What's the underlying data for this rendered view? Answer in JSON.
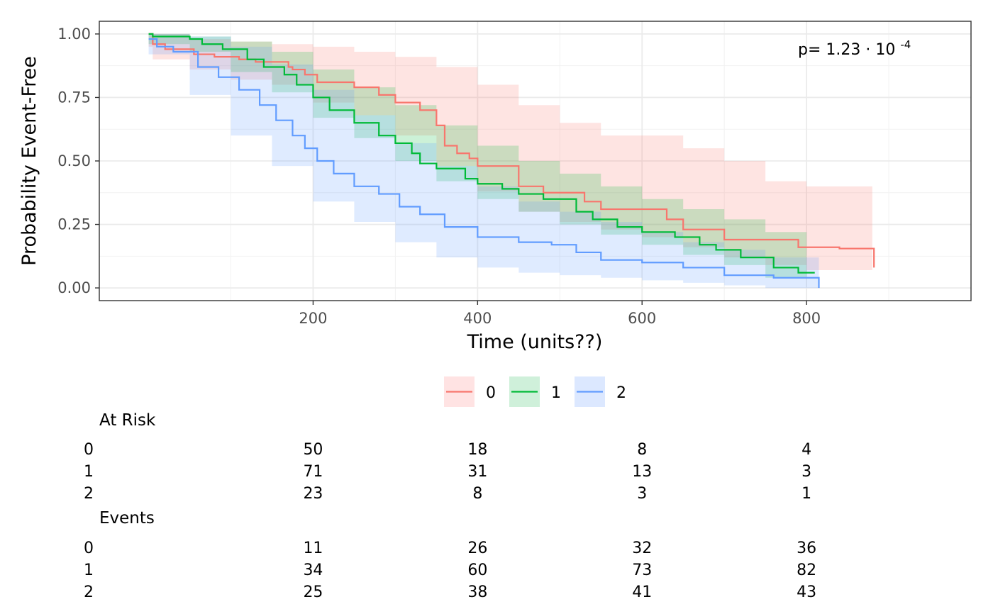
{
  "chart_data": {
    "type": "line",
    "subtype": "kaplan-meier-step",
    "title": "",
    "xlabel": "Time (units??)",
    "ylabel": "Probability Event-Free",
    "xlim": [
      -60,
      1000
    ],
    "ylim": [
      -0.05,
      1.05
    ],
    "x_ticks": [
      200,
      400,
      600,
      800
    ],
    "x_tick_labels": [
      "200",
      "400",
      "600",
      "800"
    ],
    "y_ticks": [
      0,
      0.25,
      0.5,
      0.75,
      1
    ],
    "y_tick_labels": [
      "0.00",
      "0.25",
      "0.50",
      "0.75",
      "1.00"
    ],
    "grid": true,
    "legend_position": "bottom",
    "annotation": {
      "prefix": "p= 1.23",
      "times": "·",
      "base": "10",
      "exponent": "-4"
    },
    "series": [
      {
        "name": "0",
        "color": "#F8766D",
        "fill": "#FFE3E3",
        "points": [
          [
            0,
            1.0
          ],
          [
            5,
            0.96
          ],
          [
            20,
            0.94
          ],
          [
            55,
            0.92
          ],
          [
            80,
            0.91
          ],
          [
            110,
            0.9
          ],
          [
            130,
            0.89
          ],
          [
            170,
            0.87
          ],
          [
            175,
            0.86
          ],
          [
            190,
            0.84
          ],
          [
            205,
            0.81
          ],
          [
            250,
            0.79
          ],
          [
            280,
            0.76
          ],
          [
            300,
            0.73
          ],
          [
            330,
            0.7
          ],
          [
            350,
            0.64
          ],
          [
            360,
            0.56
          ],
          [
            375,
            0.53
          ],
          [
            390,
            0.51
          ],
          [
            400,
            0.48
          ],
          [
            450,
            0.4
          ],
          [
            480,
            0.375
          ],
          [
            520,
            0.375
          ],
          [
            530,
            0.34
          ],
          [
            550,
            0.31
          ],
          [
            600,
            0.31
          ],
          [
            630,
            0.27
          ],
          [
            650,
            0.23
          ],
          [
            700,
            0.19
          ],
          [
            760,
            0.19
          ],
          [
            790,
            0.16
          ],
          [
            840,
            0.155
          ],
          [
            880,
            0.155
          ],
          [
            882,
            0.08
          ]
        ],
        "upper": [
          [
            0,
            1.0
          ],
          [
            5,
            1.0
          ],
          [
            50,
            0.98
          ],
          [
            100,
            0.97
          ],
          [
            150,
            0.96
          ],
          [
            200,
            0.95
          ],
          [
            250,
            0.93
          ],
          [
            300,
            0.91
          ],
          [
            350,
            0.87
          ],
          [
            400,
            0.8
          ],
          [
            450,
            0.72
          ],
          [
            500,
            0.65
          ],
          [
            550,
            0.6
          ],
          [
            600,
            0.6
          ],
          [
            650,
            0.55
          ],
          [
            700,
            0.5
          ],
          [
            750,
            0.42
          ],
          [
            800,
            0.4
          ],
          [
            880,
            0.36
          ]
        ],
        "lower": [
          [
            0,
            0.95
          ],
          [
            5,
            0.9
          ],
          [
            50,
            0.86
          ],
          [
            100,
            0.82
          ],
          [
            150,
            0.8
          ],
          [
            200,
            0.73
          ],
          [
            250,
            0.68
          ],
          [
            300,
            0.6
          ],
          [
            350,
            0.48
          ],
          [
            400,
            0.38
          ],
          [
            450,
            0.3
          ],
          [
            500,
            0.26
          ],
          [
            550,
            0.23
          ],
          [
            600,
            0.2
          ],
          [
            650,
            0.16
          ],
          [
            700,
            0.12
          ],
          [
            750,
            0.09
          ],
          [
            800,
            0.07
          ],
          [
            880,
            0.06
          ]
        ]
      },
      {
        "name": "1",
        "color": "#00BA38",
        "fill": "#CFF0DA",
        "points": [
          [
            0,
            1.0
          ],
          [
            5,
            0.99
          ],
          [
            50,
            0.98
          ],
          [
            65,
            0.96
          ],
          [
            90,
            0.94
          ],
          [
            120,
            0.9
          ],
          [
            140,
            0.87
          ],
          [
            165,
            0.84
          ],
          [
            180,
            0.8
          ],
          [
            200,
            0.75
          ],
          [
            220,
            0.7
          ],
          [
            250,
            0.65
          ],
          [
            280,
            0.6
          ],
          [
            300,
            0.57
          ],
          [
            320,
            0.53
          ],
          [
            330,
            0.49
          ],
          [
            350,
            0.47
          ],
          [
            385,
            0.43
          ],
          [
            400,
            0.41
          ],
          [
            430,
            0.39
          ],
          [
            450,
            0.37
          ],
          [
            480,
            0.35
          ],
          [
            520,
            0.3
          ],
          [
            540,
            0.27
          ],
          [
            570,
            0.24
          ],
          [
            600,
            0.22
          ],
          [
            640,
            0.2
          ],
          [
            670,
            0.17
          ],
          [
            690,
            0.15
          ],
          [
            720,
            0.12
          ],
          [
            760,
            0.08
          ],
          [
            790,
            0.06
          ],
          [
            810,
            0.06
          ]
        ],
        "upper": [
          [
            0,
            1.0
          ],
          [
            50,
            0.99
          ],
          [
            100,
            0.97
          ],
          [
            150,
            0.93
          ],
          [
            200,
            0.86
          ],
          [
            250,
            0.79
          ],
          [
            300,
            0.72
          ],
          [
            350,
            0.64
          ],
          [
            400,
            0.56
          ],
          [
            450,
            0.5
          ],
          [
            500,
            0.45
          ],
          [
            550,
            0.4
          ],
          [
            600,
            0.35
          ],
          [
            650,
            0.31
          ],
          [
            700,
            0.27
          ],
          [
            750,
            0.22
          ],
          [
            800,
            0.18
          ]
        ],
        "lower": [
          [
            0,
            0.96
          ],
          [
            50,
            0.93
          ],
          [
            100,
            0.85
          ],
          [
            150,
            0.77
          ],
          [
            200,
            0.67
          ],
          [
            250,
            0.59
          ],
          [
            300,
            0.5
          ],
          [
            350,
            0.42
          ],
          [
            400,
            0.35
          ],
          [
            450,
            0.3
          ],
          [
            500,
            0.25
          ],
          [
            550,
            0.21
          ],
          [
            600,
            0.17
          ],
          [
            650,
            0.13
          ],
          [
            700,
            0.09
          ],
          [
            750,
            0.04
          ],
          [
            800,
            0.02
          ]
        ]
      },
      {
        "name": "2",
        "color": "#619CFF",
        "fill": "#DCE8FF",
        "points": [
          [
            0,
            0.98
          ],
          [
            10,
            0.95
          ],
          [
            30,
            0.93
          ],
          [
            60,
            0.87
          ],
          [
            85,
            0.83
          ],
          [
            110,
            0.78
          ],
          [
            135,
            0.72
          ],
          [
            155,
            0.66
          ],
          [
            175,
            0.6
          ],
          [
            190,
            0.55
          ],
          [
            205,
            0.5
          ],
          [
            225,
            0.45
          ],
          [
            250,
            0.4
          ],
          [
            280,
            0.37
          ],
          [
            305,
            0.32
          ],
          [
            330,
            0.29
          ],
          [
            360,
            0.24
          ],
          [
            400,
            0.2
          ],
          [
            450,
            0.18
          ],
          [
            490,
            0.17
          ],
          [
            520,
            0.14
          ],
          [
            550,
            0.11
          ],
          [
            600,
            0.1
          ],
          [
            650,
            0.08
          ],
          [
            700,
            0.05
          ],
          [
            760,
            0.04
          ],
          [
            810,
            0.04
          ],
          [
            815,
            0.0
          ]
        ],
        "upper": [
          [
            0,
            1.0
          ],
          [
            50,
            0.99
          ],
          [
            100,
            0.95
          ],
          [
            150,
            0.88
          ],
          [
            200,
            0.78
          ],
          [
            250,
            0.68
          ],
          [
            300,
            0.57
          ],
          [
            350,
            0.48
          ],
          [
            400,
            0.4
          ],
          [
            450,
            0.34
          ],
          [
            500,
            0.3
          ],
          [
            550,
            0.26
          ],
          [
            600,
            0.22
          ],
          [
            650,
            0.18
          ],
          [
            700,
            0.15
          ],
          [
            750,
            0.12
          ],
          [
            815,
            0.1
          ]
        ],
        "lower": [
          [
            0,
            0.92
          ],
          [
            50,
            0.76
          ],
          [
            100,
            0.6
          ],
          [
            150,
            0.48
          ],
          [
            200,
            0.34
          ],
          [
            250,
            0.26
          ],
          [
            300,
            0.18
          ],
          [
            350,
            0.12
          ],
          [
            400,
            0.08
          ],
          [
            450,
            0.06
          ],
          [
            500,
            0.05
          ],
          [
            550,
            0.04
          ],
          [
            600,
            0.03
          ],
          [
            650,
            0.02
          ],
          [
            700,
            0.01
          ],
          [
            750,
            0.0
          ],
          [
            815,
            0.0
          ]
        ]
      }
    ],
    "risk_table": {
      "title": "At Risk",
      "row_labels": [
        "0",
        "1",
        "2"
      ],
      "time_points": [
        200,
        400,
        600,
        800
      ],
      "rows": [
        [
          "50",
          "18",
          "8",
          "4"
        ],
        [
          "71",
          "31",
          "13",
          "3"
        ],
        [
          "23",
          "8",
          "3",
          "1"
        ]
      ]
    },
    "events_table": {
      "title": "Events",
      "row_labels": [
        "0",
        "1",
        "2"
      ],
      "time_points": [
        200,
        400,
        600,
        800
      ],
      "rows": [
        [
          "11",
          "26",
          "32",
          "36"
        ],
        [
          "34",
          "60",
          "73",
          "82"
        ],
        [
          "25",
          "38",
          "41",
          "43"
        ]
      ]
    }
  }
}
